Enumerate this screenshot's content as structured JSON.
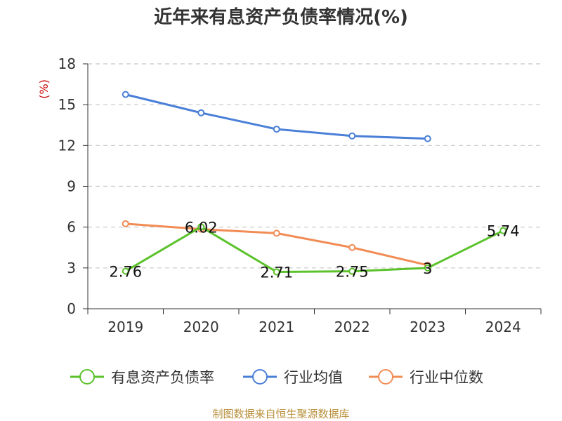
{
  "chart_data": {
    "type": "line",
    "title": "近年来有息资产负债率情况(%)",
    "ylabel": "(%)",
    "categories": [
      "2019",
      "2020",
      "2021",
      "2022",
      "2023",
      "2024"
    ],
    "ylim": [
      0,
      18
    ],
    "yticks": [
      0,
      3,
      6,
      9,
      12,
      15,
      18
    ],
    "grid": true,
    "legend_position": "bottom",
    "series": [
      {
        "name": "有息资产负债率",
        "color": "#5bc22b",
        "values": [
          2.76,
          6.02,
          2.71,
          2.75,
          3.0,
          5.74
        ],
        "labels": [
          "2.76",
          "6.02",
          "2.71",
          "2.75",
          "3",
          "5.74"
        ]
      },
      {
        "name": "行业均值",
        "color": "#4a7fd8",
        "values": [
          15.75,
          14.4,
          13.2,
          12.7,
          12.5,
          null
        ]
      },
      {
        "name": "行业中位数",
        "color": "#f28c55",
        "values": [
          6.25,
          5.85,
          5.55,
          4.5,
          3.2,
          null
        ]
      }
    ]
  },
  "footer": {
    "source": "制图数据来自恒生聚源数据库"
  }
}
